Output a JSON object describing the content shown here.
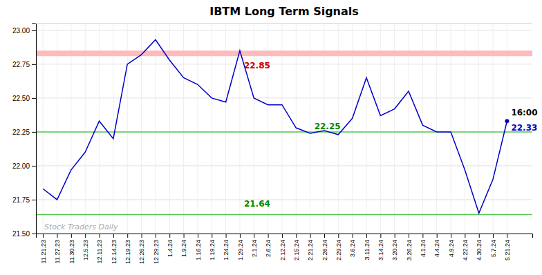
{
  "chart_data": {
    "type": "line",
    "title": "IBTM Long Term Signals",
    "categories": [
      "11.21.23",
      "11.27.23",
      "11.30.23",
      "12.5.23",
      "12.11.23",
      "12.14.23",
      "12.19.23",
      "12.26.23",
      "12.29.23",
      "1.4.24",
      "1.9.24",
      "1.16.24",
      "1.19.24",
      "1.24.24",
      "1.29.24",
      "2.1.24",
      "2.6.24",
      "2.12.24",
      "2.15.24",
      "2.21.24",
      "2.26.24",
      "2.29.24",
      "3.6.24",
      "3.11.24",
      "3.14.24",
      "3.20.24",
      "3.26.24",
      "4.1.24",
      "4.4.24",
      "4.9.24",
      "4.22.24",
      "4.30.24",
      "5.7.24",
      "5.21.24"
    ],
    "values": [
      21.83,
      21.75,
      21.97,
      22.1,
      22.33,
      22.2,
      22.75,
      22.82,
      22.93,
      22.78,
      22.65,
      22.6,
      22.5,
      22.47,
      22.85,
      22.5,
      22.45,
      22.45,
      22.28,
      22.24,
      22.26,
      22.23,
      22.35,
      22.65,
      22.37,
      22.42,
      22.55,
      22.3,
      22.25,
      22.25,
      21.97,
      21.65,
      21.9,
      22.33
    ],
    "color": "#0000cc",
    "ylim": [
      21.5,
      23.05
    ],
    "yticks": [
      {
        "value": 21.5,
        "label": "21.50"
      },
      21.75,
      {
        "value": 22.0,
        "label": "22.00"
      },
      22.25,
      {
        "value": 22.5,
        "label": "22.50"
      },
      22.75,
      {
        "value": 23.0,
        "label": "23.00"
      }
    ],
    "grid": true,
    "reference_lines": [
      {
        "value": 22.83,
        "color": "#ffbbbb",
        "line_style": "band"
      },
      {
        "value": 22.25,
        "color": "#55cc55",
        "line_style": "solid"
      },
      {
        "value": 21.64,
        "color": "#55cc55",
        "line_style": "solid"
      }
    ],
    "annotations": [
      {
        "text": "22.85",
        "x": "1.29.24",
        "y": 22.72,
        "color": "#cc0000"
      },
      {
        "text": "22.25",
        "x": "2.21.24",
        "y": 22.27,
        "color": "#008800"
      },
      {
        "text": "21.64",
        "x": "1.29.24",
        "y": 21.7,
        "color": "#008800"
      },
      {
        "text": "16:00",
        "x": "5.21.24",
        "y": 22.37,
        "color": "#000000"
      },
      {
        "text": "22.33",
        "x": "5.21.24",
        "y": 22.26,
        "color": "#0000cc"
      },
      {
        "text": "Stock Traders Daily",
        "color": "#aaaaaa"
      }
    ]
  }
}
